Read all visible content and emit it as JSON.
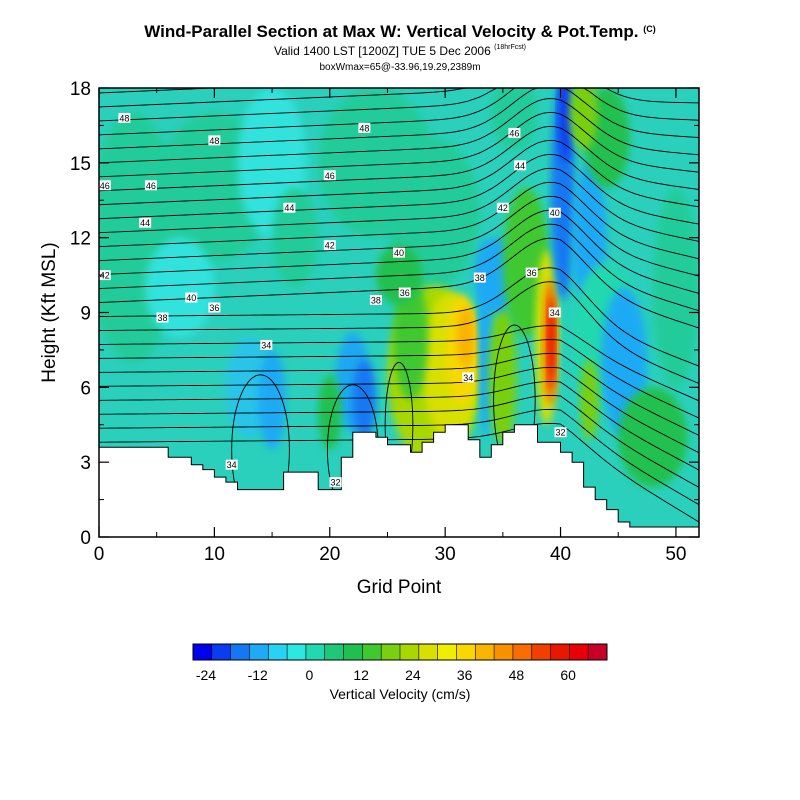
{
  "title": {
    "main": "Wind-Parallel Section at Max W: Vertical Velocity & Pot.Temp.",
    "main_tag": "(C)",
    "valid": "Valid 1400 LST [1200Z] TUE 5 Dec 2006",
    "valid_tag": "(18hrFcst)",
    "box": "boxWmax=65@-33.96,19.29,2389m"
  },
  "chart_data": {
    "type": "heatmap",
    "xlabel": "Grid Point",
    "ylabel": "Height (Kft MSL)",
    "xlim": [
      0,
      52
    ],
    "ylim": [
      0,
      18
    ],
    "x_ticks": [
      0,
      10,
      20,
      30,
      40,
      50
    ],
    "y_ticks": [
      0,
      3,
      6,
      9,
      12,
      15,
      18
    ],
    "terrain": [
      [
        0,
        3.6
      ],
      [
        6,
        3.6
      ],
      [
        6,
        3.2
      ],
      [
        8,
        3.2
      ],
      [
        8,
        2.9
      ],
      [
        9,
        2.9
      ],
      [
        9,
        2.7
      ],
      [
        10,
        2.7
      ],
      [
        10,
        2.4
      ],
      [
        11,
        2.4
      ],
      [
        11,
        2.2
      ],
      [
        12,
        2.2
      ],
      [
        12,
        1.9
      ],
      [
        16,
        1.9
      ],
      [
        16,
        2.6
      ],
      [
        18,
        2.6
      ],
      [
        18,
        2.6
      ],
      [
        19,
        2.6
      ],
      [
        19,
        1.9
      ],
      [
        21,
        1.9
      ],
      [
        21,
        3.2
      ],
      [
        22,
        3.2
      ],
      [
        22,
        4.2
      ],
      [
        24,
        4.2
      ],
      [
        24,
        4.0
      ],
      [
        25,
        4.0
      ],
      [
        25,
        3.7
      ],
      [
        27,
        3.7
      ],
      [
        27,
        3.4
      ],
      [
        28,
        3.4
      ],
      [
        28,
        3.8
      ],
      [
        29,
        3.8
      ],
      [
        29,
        4.2
      ],
      [
        30,
        4.2
      ],
      [
        30,
        4.5
      ],
      [
        32,
        4.5
      ],
      [
        32,
        3.9
      ],
      [
        33,
        3.9
      ],
      [
        33,
        3.2
      ],
      [
        34,
        3.2
      ],
      [
        34,
        3.7
      ],
      [
        35,
        3.7
      ],
      [
        35,
        4.2
      ],
      [
        36,
        4.2
      ],
      [
        36,
        4.5
      ],
      [
        38,
        4.5
      ],
      [
        38,
        3.8
      ],
      [
        40,
        3.8
      ],
      [
        40,
        3.4
      ],
      [
        41,
        3.4
      ],
      [
        41,
        3.0
      ],
      [
        42,
        3.0
      ],
      [
        42,
        2.0
      ],
      [
        43,
        2.0
      ],
      [
        43,
        1.5
      ],
      [
        44,
        1.5
      ],
      [
        44,
        1.1
      ],
      [
        45,
        1.1
      ],
      [
        45,
        0.6
      ],
      [
        46,
        0.6
      ],
      [
        46,
        0.4
      ],
      [
        52,
        0.4
      ]
    ],
    "theta_labels": [
      {
        "x": 2.2,
        "y": 16.8,
        "text": "48"
      },
      {
        "x": 4.5,
        "y": 14.1,
        "text": "46"
      },
      {
        "x": 10,
        "y": 15.9,
        "text": "48"
      },
      {
        "x": 23,
        "y": 16.4,
        "text": "48"
      },
      {
        "x": 36,
        "y": 16.2,
        "text": "46"
      },
      {
        "x": 0.5,
        "y": 14.1,
        "text": "46"
      },
      {
        "x": 4,
        "y": 12.6,
        "text": "44"
      },
      {
        "x": 16.5,
        "y": 13.2,
        "text": "44"
      },
      {
        "x": 20,
        "y": 14.5,
        "text": "46"
      },
      {
        "x": 36.5,
        "y": 14.9,
        "text": "44"
      },
      {
        "x": 35,
        "y": 13.2,
        "text": "42"
      },
      {
        "x": 39.5,
        "y": 13.0,
        "text": "40"
      },
      {
        "x": 20,
        "y": 11.7,
        "text": "42"
      },
      {
        "x": 26,
        "y": 11.4,
        "text": "40"
      },
      {
        "x": 0.5,
        "y": 10.5,
        "text": "42"
      },
      {
        "x": 8,
        "y": 9.6,
        "text": "40"
      },
      {
        "x": 33,
        "y": 10.4,
        "text": "38"
      },
      {
        "x": 37.5,
        "y": 10.6,
        "text": "36"
      },
      {
        "x": 10,
        "y": 9.2,
        "text": "36"
      },
      {
        "x": 24,
        "y": 9.5,
        "text": "38"
      },
      {
        "x": 26.5,
        "y": 9.8,
        "text": "36"
      },
      {
        "x": 5.5,
        "y": 8.8,
        "text": "38"
      },
      {
        "x": 14.5,
        "y": 7.7,
        "text": "34"
      },
      {
        "x": 39.5,
        "y": 9.0,
        "text": "34"
      },
      {
        "x": 32,
        "y": 6.4,
        "text": "34"
      },
      {
        "x": 11.5,
        "y": 2.9,
        "text": "34"
      },
      {
        "x": 20.5,
        "y": 2.2,
        "text": "32"
      },
      {
        "x": 40,
        "y": 4.2,
        "text": "32"
      }
    ],
    "colorbar": {
      "label": "Vertical Velocity (cm/s)",
      "tick_labels": [
        "-24",
        "-12",
        "0",
        "12",
        "24",
        "36",
        "48",
        "60"
      ],
      "tick_values": [
        -24,
        -12,
        0,
        12,
        24,
        36,
        48,
        60
      ],
      "range": [
        -27,
        69
      ],
      "colors": [
        "#0000ee",
        "#0a3cf0",
        "#1478f4",
        "#1eaaf4",
        "#28d2f2",
        "#2ce8e0",
        "#22d8b0",
        "#1ec878",
        "#20c050",
        "#40c830",
        "#78d010",
        "#a8d800",
        "#d8e000",
        "#f0ee00",
        "#f8d800",
        "#f8b400",
        "#f89000",
        "#f86c00",
        "#f04000",
        "#e81800",
        "#e80008",
        "#c80028"
      ]
    }
  }
}
